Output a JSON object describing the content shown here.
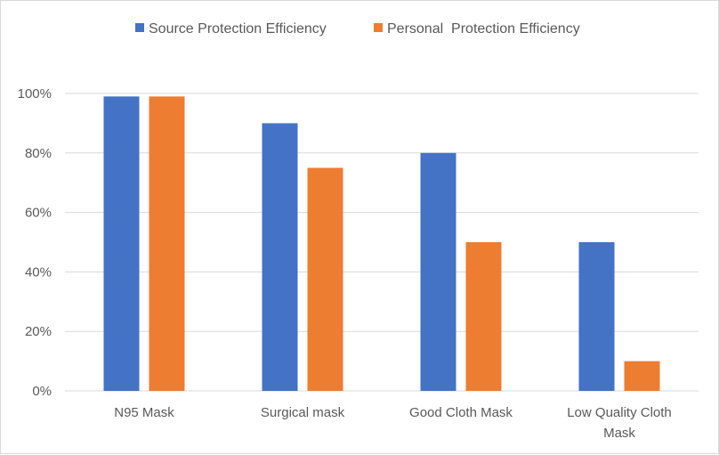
{
  "chart_data": {
    "type": "bar",
    "title": "",
    "xlabel": "",
    "ylabel": "",
    "categories": [
      "N95 Mask",
      "Surgical mask",
      "Good Cloth Mask",
      "Low Quality Cloth Mask"
    ],
    "category_lines": [
      [
        "N95 Mask"
      ],
      [
        "Surgical mask"
      ],
      [
        "Good Cloth Mask"
      ],
      [
        "Low Quality Cloth",
        "Mask"
      ]
    ],
    "series": [
      {
        "name": "Source Protection Efficiency",
        "color": "#4472C4",
        "values": [
          0.99,
          0.9,
          0.8,
          0.5
        ]
      },
      {
        "name": "Personal  Protection Efficiency",
        "color": "#ED7D31",
        "values": [
          0.99,
          0.75,
          0.5,
          0.1
        ]
      }
    ],
    "ylim": [
      0,
      1
    ],
    "yticks": [
      0,
      0.2,
      0.4,
      0.6,
      0.8,
      1.0
    ],
    "ytick_labels": [
      "0%",
      "20%",
      "40%",
      "60%",
      "80%",
      "100%"
    ],
    "grid": true,
    "legend_position": "top"
  }
}
